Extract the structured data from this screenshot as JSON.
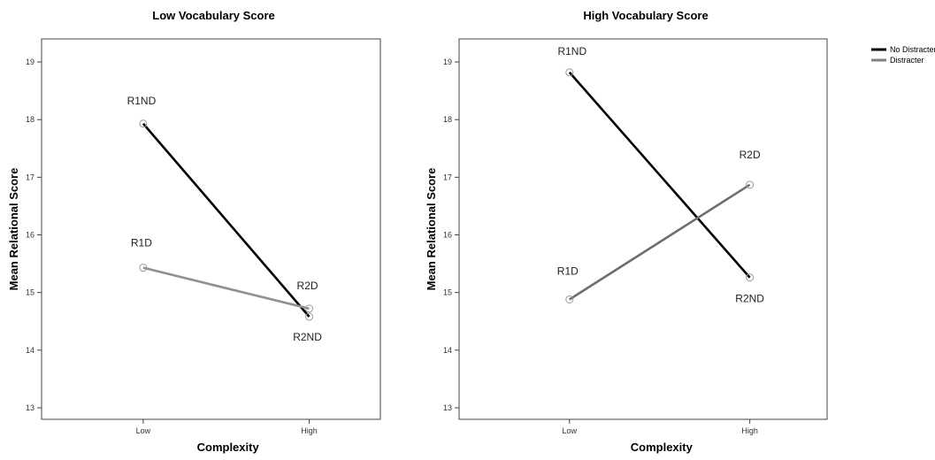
{
  "chart_data": [
    {
      "type": "line",
      "title": "Low Vocabulary Score",
      "xlabel": "Complexity",
      "ylabel": "Mean Relational Score",
      "categories": [
        "Low",
        "High"
      ],
      "ylim": [
        12.8,
        19.4
      ],
      "yticks": [
        13,
        14,
        15,
        16,
        17,
        18,
        19
      ],
      "series": [
        {
          "name": "No Distracter",
          "color": "#000000",
          "values": [
            17.93,
            14.58
          ],
          "point_labels": [
            "R1ND",
            "R2ND"
          ]
        },
        {
          "name": "Distracter",
          "color": "#909090",
          "values": [
            15.43,
            14.72
          ],
          "point_labels": [
            "R1D",
            "R2D"
          ]
        }
      ]
    },
    {
      "type": "line",
      "title": "High Vocabulary Score",
      "xlabel": "Complexity",
      "ylabel": "Mean Relational Score",
      "categories": [
        "Low",
        "High"
      ],
      "ylim": [
        12.8,
        19.4
      ],
      "yticks": [
        13,
        14,
        15,
        16,
        17,
        18,
        19
      ],
      "series": [
        {
          "name": "No Distracter",
          "color": "#000000",
          "values": [
            18.82,
            15.26
          ],
          "point_labels": [
            "R1ND",
            "R2ND"
          ]
        },
        {
          "name": "Distracter",
          "color": "#6e6e6e",
          "values": [
            14.88,
            16.87
          ],
          "point_labels": [
            "R1D",
            "R2D"
          ]
        }
      ]
    }
  ],
  "legend": {
    "placement": "top-right",
    "entries": [
      {
        "label": "No Distracter",
        "color": "#000000"
      },
      {
        "label": "Distracter",
        "color": "#808080"
      }
    ]
  }
}
